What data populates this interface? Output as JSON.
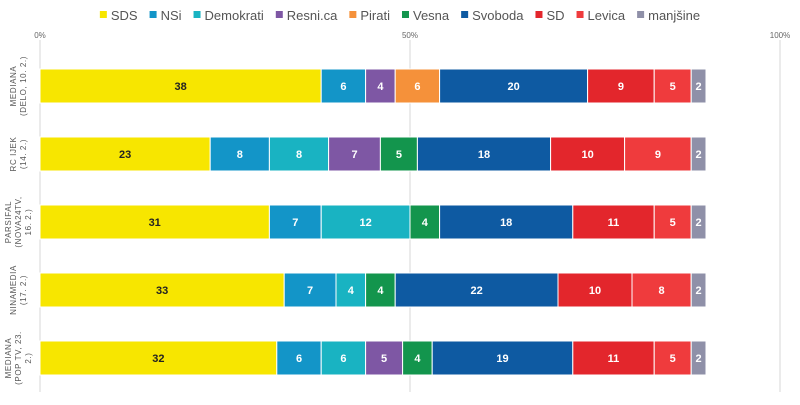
{
  "chart_data": {
    "type": "bar",
    "orientation": "horizontal",
    "stacked": true,
    "legend_position": "top",
    "grid": true,
    "xlim": [
      0,
      100
    ],
    "x_ticks": [
      "0%",
      "50%",
      "100%"
    ],
    "categories": [
      "MEDIANA (DELO, 10. 2.)",
      "RC IJEK (14. 2.)",
      "PARSIFAL (NOVA24TV, 16. 2.)",
      "NINAMEDIA (17. 2.)",
      "MEDIANA (POP TV, 23. 2.)"
    ],
    "category_lines": [
      [
        "MEDIANA",
        "(DELO, 10. 2.)"
      ],
      [
        "RC IJEK",
        "(14. 2.)"
      ],
      [
        "PARSIFAL",
        "(NOVA24TV,",
        "16. 2.)"
      ],
      [
        "NINAMEDIA",
        "(17. 2.)"
      ],
      [
        "MEDIANA",
        "(POP TV, 23.",
        "2.)"
      ]
    ],
    "series": [
      {
        "name": "SDS",
        "color": "#f7e600",
        "label_color": "#222222",
        "values": [
          38,
          23,
          31,
          33,
          32
        ]
      },
      {
        "name": "NSi",
        "color": "#1395c8",
        "label_color": "#ffffff",
        "values": [
          6,
          8,
          7,
          7,
          6
        ]
      },
      {
        "name": "Demokrati",
        "color": "#19b3c2",
        "label_color": "#ffffff",
        "values": [
          0,
          8,
          12,
          4,
          6
        ]
      },
      {
        "name": "Resni.ca",
        "color": "#7e57a4",
        "label_color": "#ffffff",
        "values": [
          4,
          7,
          0,
          0,
          5
        ]
      },
      {
        "name": "Pirati",
        "color": "#f5913a",
        "label_color": "#ffffff",
        "values": [
          6,
          0,
          0,
          0,
          0
        ]
      },
      {
        "name": "Vesna",
        "color": "#13954d",
        "label_color": "#ffffff",
        "values": [
          0,
          5,
          4,
          4,
          4
        ]
      },
      {
        "name": "Svoboda",
        "color": "#0e5aa2",
        "label_color": "#ffffff",
        "values": [
          20,
          18,
          18,
          22,
          19
        ]
      },
      {
        "name": "SD",
        "color": "#e3262c",
        "label_color": "#ffffff",
        "values": [
          9,
          10,
          11,
          10,
          11
        ]
      },
      {
        "name": "Levica",
        "color": "#ef3b3d",
        "label_color": "#ffffff",
        "values": [
          5,
          9,
          5,
          8,
          5
        ]
      },
      {
        "name": "manjšine",
        "color": "#8f90a8",
        "label_color": "#ffffff",
        "values": [
          2,
          2,
          2,
          2,
          2
        ]
      }
    ]
  }
}
